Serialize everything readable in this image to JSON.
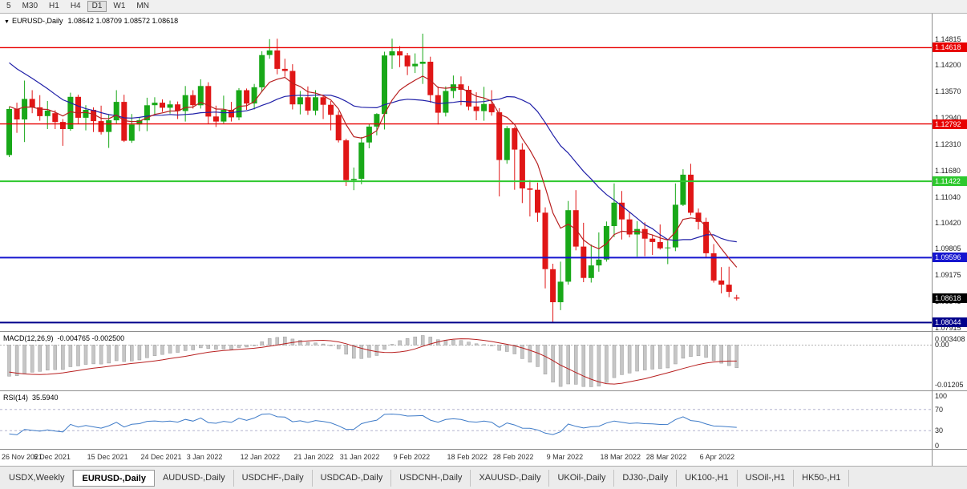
{
  "toolbar": {
    "periods": [
      "5",
      "M30",
      "H1",
      "H4",
      "D1",
      "W1",
      "MN"
    ],
    "active_period": "D1"
  },
  "chart_header": {
    "dropdown_icon": "▼",
    "symbol": "EURUSD-,Daily",
    "ohlc": "1.08642 1.08709 1.08572 1.08618"
  },
  "macd": {
    "label": "MACD(12,26,9)",
    "values": "-0.004765 -0.002500",
    "axis_top": "0.003408",
    "axis_zero": "0.00",
    "axis_bottom": "-0.01205"
  },
  "rsi": {
    "label": "RSI(14)",
    "value": "35.5940",
    "levels": [
      "100",
      "70",
      "30",
      "0"
    ]
  },
  "tabs": {
    "active_index": 1,
    "items": [
      "USDX,Weekly",
      "EURUSD-,Daily",
      "AUDUSD-,Daily",
      "USDCHF-,Daily",
      "USDCAD-,Daily",
      "USDCNH-,Daily",
      "XAUUSD-,Daily",
      "UKOil-,Daily",
      "DJ30-,Daily",
      "UK100-,H1",
      "USOil-,H1",
      "HK50-,H1"
    ],
    "icons": {
      "dropdown": "symbol-dropdown-icon"
    }
  },
  "chart_data": {
    "type": "candlestick",
    "title": "EURUSD-,Daily",
    "symbol": "EURUSD",
    "timeframe": "Daily",
    "price_range": [
      1.1543,
      1.0784
    ],
    "colors": {
      "up": "#18a818",
      "down": "#e01616",
      "ma_blue": "#2020a8",
      "ma_red": "#b82020",
      "macd_hist": "#c6c6c6",
      "macd_signal": "#b82020",
      "rsi": "#3e7bc8",
      "level_dash": "#a8a8c8"
    },
    "ma": {
      "blue_period": 20,
      "red_period": 8
    },
    "indicators": [
      "MACD(12,26,9)",
      "RSI(14)"
    ],
    "pre_closes": [
      1.1606,
      1.158,
      1.1562,
      1.1551,
      1.154,
      1.1562,
      1.1555,
      1.153,
      1.1484,
      1.1452,
      1.144,
      1.137,
      1.1365,
      1.1382,
      1.1378,
      1.1345,
      1.129,
      1.1254,
      1.1268,
      1.1287
    ],
    "candles": [
      [
        1.1205,
        1.132,
        1.12,
        1.1315
      ],
      [
        1.1315,
        1.133,
        1.1258,
        1.129
      ],
      [
        1.129,
        1.1383,
        1.1236,
        1.1339
      ],
      [
        1.1339,
        1.136,
        1.1305,
        1.1319
      ],
      [
        1.1319,
        1.1348,
        1.1287,
        1.1298
      ],
      [
        1.1298,
        1.1334,
        1.1267,
        1.1311
      ],
      [
        1.1305,
        1.1312,
        1.1267,
        1.1284
      ],
      [
        1.1284,
        1.1291,
        1.1227,
        1.1267
      ],
      [
        1.1267,
        1.1354,
        1.1263,
        1.1344
      ],
      [
        1.1344,
        1.1349,
        1.128,
        1.1294
      ],
      [
        1.1294,
        1.1324,
        1.1264,
        1.1313
      ],
      [
        1.1313,
        1.1319,
        1.126,
        1.1286
      ],
      [
        1.1286,
        1.1323,
        1.1254,
        1.126
      ],
      [
        1.126,
        1.1303,
        1.1222,
        1.1288
      ],
      [
        1.1288,
        1.136,
        1.128,
        1.1332
      ],
      [
        1.1332,
        1.1349,
        1.1236,
        1.1239
      ],
      [
        1.1239,
        1.1303,
        1.1234,
        1.1278
      ],
      [
        1.1278,
        1.1296,
        1.1262,
        1.1288
      ],
      [
        1.1288,
        1.1342,
        1.1262,
        1.1324
      ],
      [
        1.1324,
        1.1343,
        1.13,
        1.133
      ],
      [
        1.133,
        1.1338,
        1.1308,
        1.1318
      ],
      [
        1.1318,
        1.1335,
        1.1304,
        1.1326
      ],
      [
        1.1326,
        1.1333,
        1.1291,
        1.131
      ],
      [
        1.131,
        1.137,
        1.1285,
        1.1348
      ],
      [
        1.1348,
        1.136,
        1.1316,
        1.1324
      ],
      [
        1.1324,
        1.1386,
        1.1316,
        1.137
      ],
      [
        1.137,
        1.1379,
        1.1279,
        1.1297
      ],
      [
        1.1297,
        1.1323,
        1.1272,
        1.1285
      ],
      [
        1.1285,
        1.1347,
        1.1279,
        1.1313
      ],
      [
        1.1313,
        1.1332,
        1.1285,
        1.1295
      ],
      [
        1.1295,
        1.1365,
        1.1288,
        1.136
      ],
      [
        1.136,
        1.1364,
        1.1313,
        1.1328
      ],
      [
        1.1328,
        1.1375,
        1.1314,
        1.1367
      ],
      [
        1.1367,
        1.1453,
        1.1355,
        1.1444
      ],
      [
        1.1444,
        1.1482,
        1.1435,
        1.1455
      ],
      [
        1.1455,
        1.1483,
        1.1398,
        1.1411
      ],
      [
        1.1411,
        1.1435,
        1.1392,
        1.1406
      ],
      [
        1.1406,
        1.1422,
        1.1314,
        1.1326
      ],
      [
        1.1326,
        1.1358,
        1.1302,
        1.1343
      ],
      [
        1.1343,
        1.1369,
        1.1301,
        1.1311
      ],
      [
        1.1311,
        1.136,
        1.13,
        1.1343
      ],
      [
        1.1343,
        1.1349,
        1.1291,
        1.1325
      ],
      [
        1.1325,
        1.1334,
        1.1264,
        1.1301
      ],
      [
        1.1301,
        1.131,
        1.1235,
        1.124
      ],
      [
        1.124,
        1.1244,
        1.1131,
        1.1145
      ],
      [
        1.1145,
        1.1175,
        1.1121,
        1.1148
      ],
      [
        1.1148,
        1.1248,
        1.1135,
        1.1235
      ],
      [
        1.1235,
        1.1279,
        1.1221,
        1.1273
      ],
      [
        1.1273,
        1.1305,
        1.1252,
        1.1303
      ],
      [
        1.1303,
        1.1452,
        1.1266,
        1.1443
      ],
      [
        1.1443,
        1.1483,
        1.1411,
        1.1453
      ],
      [
        1.1453,
        1.1465,
        1.1415,
        1.1443
      ],
      [
        1.1443,
        1.1449,
        1.1396,
        1.1417
      ],
      [
        1.1417,
        1.1448,
        1.1401,
        1.1423
      ],
      [
        1.1423,
        1.1495,
        1.1375,
        1.1428
      ],
      [
        1.1428,
        1.144,
        1.133,
        1.1348
      ],
      [
        1.1348,
        1.1369,
        1.1278,
        1.1306
      ],
      [
        1.1306,
        1.1369,
        1.1297,
        1.1358
      ],
      [
        1.1358,
        1.1395,
        1.1341,
        1.1374
      ],
      [
        1.1374,
        1.1393,
        1.1324,
        1.1361
      ],
      [
        1.1361,
        1.137,
        1.1312,
        1.1321
      ],
      [
        1.1321,
        1.1355,
        1.1288,
        1.131
      ],
      [
        1.131,
        1.1368,
        1.1287,
        1.1327
      ],
      [
        1.1327,
        1.136,
        1.1299,
        1.1307
      ],
      [
        1.1307,
        1.1317,
        1.1106,
        1.1193
      ],
      [
        1.1193,
        1.1274,
        1.1184,
        1.1269
      ],
      [
        1.1269,
        1.1272,
        1.1122,
        1.1218
      ],
      [
        1.1218,
        1.1233,
        1.109,
        1.1125
      ],
      [
        1.1125,
        1.1145,
        1.1058,
        1.1122
      ],
      [
        1.1122,
        1.1139,
        1.1045,
        1.1067
      ],
      [
        1.1067,
        1.108,
        1.0886,
        1.0932
      ],
      [
        1.0932,
        1.0945,
        1.0806,
        1.0853
      ],
      [
        1.0853,
        1.095,
        1.0834,
        1.0902
      ],
      [
        1.0902,
        1.1095,
        1.0895,
        1.1073
      ],
      [
        1.1073,
        1.1121,
        1.0977,
        1.0986
      ],
      [
        1.0986,
        1.1043,
        1.0901,
        1.0911
      ],
      [
        1.0911,
        1.0991,
        1.09,
        1.0941
      ],
      [
        1.0941,
        1.102,
        1.0926,
        1.0955
      ],
      [
        1.0955,
        1.1046,
        1.095,
        1.1035
      ],
      [
        1.1035,
        1.1137,
        1.1009,
        1.1091
      ],
      [
        1.1091,
        1.1119,
        1.1003,
        1.1051
      ],
      [
        1.1051,
        1.1069,
        1.1008,
        1.1015
      ],
      [
        1.1015,
        1.1047,
        1.0962,
        1.1028
      ],
      [
        1.1028,
        1.1044,
        1.0963,
        1.1005
      ],
      [
        1.1005,
        1.1014,
        1.0966,
        1.0997
      ],
      [
        1.0997,
        1.1039,
        1.0979,
        1.0982
      ],
      [
        1.0982,
        1.1,
        1.0944,
        1.0984
      ],
      [
        1.0984,
        1.1137,
        1.0975,
        1.1086
      ],
      [
        1.1086,
        1.1171,
        1.1083,
        1.1158
      ],
      [
        1.1158,
        1.1184,
        1.1061,
        1.1067
      ],
      [
        1.1067,
        1.1077,
        1.1027,
        1.1045
      ],
      [
        1.1045,
        1.1055,
        1.096,
        1.097
      ],
      [
        1.097,
        1.0992,
        1.09,
        1.0905
      ],
      [
        1.0905,
        1.0937,
        1.0874,
        1.0895
      ],
      [
        1.0895,
        1.0938,
        1.0865,
        1.0878
      ],
      [
        1.08642,
        1.08709,
        1.08572,
        1.08618
      ]
    ],
    "hlines": [
      {
        "price": 1.14618,
        "color": "#e80000",
        "width": 1.4
      },
      {
        "price": 1.12792,
        "color": "#e80000",
        "width": 1.4
      },
      {
        "price": 1.11422,
        "color": "#2ec82e",
        "width": 2
      },
      {
        "price": 1.09596,
        "color": "#1515cf",
        "width": 2
      },
      {
        "price": 1.08044,
        "color": "#00008b",
        "width": 2
      }
    ],
    "y_ticks": [
      "1.14815",
      "1.14200",
      "1.13570",
      "1.12940",
      "1.12310",
      "1.11680",
      "1.11040",
      "1.10420",
      "1.09805",
      "1.09175",
      "1.08545",
      "1.07915"
    ],
    "price_badges": [
      {
        "text": "1.14618",
        "color": "#e80000"
      },
      {
        "text": "1.12792",
        "color": "#e80000"
      },
      {
        "text": "1.11422",
        "color": "#2ec82e"
      },
      {
        "text": "1.09596",
        "color": "#1515cf"
      },
      {
        "text": "1.08618",
        "color": "#000000"
      },
      {
        "text": "1.08044",
        "color": "#00008b"
      }
    ],
    "x_ticks": [
      {
        "label": "26 Nov 2021",
        "i": 0
      },
      {
        "label": "6 Dec 2021",
        "i": 6
      },
      {
        "label": "15 Dec 2021",
        "i": 13
      },
      {
        "label": "24 Dec 2021",
        "i": 20
      },
      {
        "label": "3 Jan 2022",
        "i": 26
      },
      {
        "label": "12 Jan 2022",
        "i": 33
      },
      {
        "label": "21 Jan 2022",
        "i": 40
      },
      {
        "label": "31 Jan 2022",
        "i": 46
      },
      {
        "label": "9 Feb 2022",
        "i": 53
      },
      {
        "label": "18 Feb 2022",
        "i": 60
      },
      {
        "label": "28 Feb 2022",
        "i": 66
      },
      {
        "label": "9 Mar 2022",
        "i": 73
      },
      {
        "label": "18 Mar 2022",
        "i": 80
      },
      {
        "label": "28 Mar 2022",
        "i": 86
      },
      {
        "label": "6 Apr 2022",
        "i": 93
      }
    ]
  }
}
